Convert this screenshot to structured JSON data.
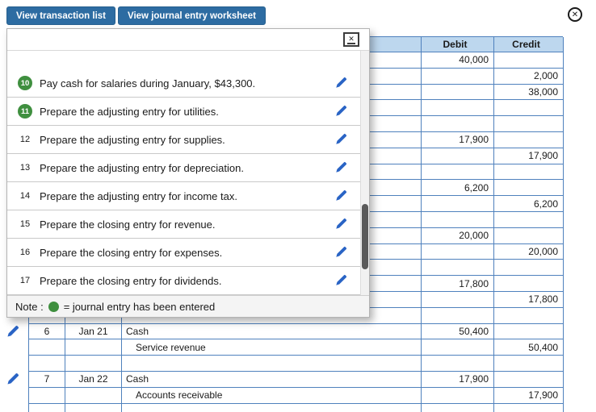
{
  "toolbar": {
    "view_transaction_list": "View transaction list",
    "view_journal_entry_worksheet": "View journal entry worksheet"
  },
  "icons": {
    "close_glyph": "✕"
  },
  "colors": {
    "button_blue": "#2d6ca2",
    "table_header_fill": "#bdd7ee",
    "grid_border_blue": "#4f81bd",
    "entered_green": "#3f8f3f",
    "pencil_blue": "#2a64c5"
  },
  "popup": {
    "items": [
      {
        "num": "10",
        "entered": true,
        "text": "Pay cash for salaries during January, $43,300."
      },
      {
        "num": "11",
        "entered": true,
        "text": "Prepare the adjusting entry for utilities."
      },
      {
        "num": "12",
        "entered": false,
        "text": "Prepare the adjusting entry for supplies."
      },
      {
        "num": "13",
        "entered": false,
        "text": "Prepare the adjusting entry for depreciation."
      },
      {
        "num": "14",
        "entered": false,
        "text": "Prepare the adjusting entry for income tax."
      },
      {
        "num": "15",
        "entered": false,
        "text": "Prepare the closing entry for revenue."
      },
      {
        "num": "16",
        "entered": false,
        "text": "Prepare the closing entry for expenses."
      },
      {
        "num": "17",
        "entered": false,
        "text": "Prepare the closing entry for dividends."
      }
    ],
    "note_prefix": "Note :",
    "note_text": "= journal entry has been entered"
  },
  "table": {
    "headers": {
      "debit": "Debit",
      "credit": "Credit"
    },
    "rows": [
      {
        "debit": "40,000"
      },
      {
        "credit": "2,000"
      },
      {
        "credit": "38,000"
      },
      {},
      {},
      {
        "debit": "17,900"
      },
      {
        "credit": "17,900"
      },
      {},
      {
        "debit": "6,200"
      },
      {
        "credit": "6,200"
      },
      {},
      {
        "debit": "20,000"
      },
      {
        "credit": "20,000"
      },
      {},
      {
        "debit": "17,800"
      },
      {
        "credit": "17,800"
      },
      {},
      {
        "pencil": true,
        "no": "6",
        "date": "Jan 21",
        "account": "Cash",
        "debit": "50,400"
      },
      {
        "indent": true,
        "account": "Service revenue",
        "credit": "50,400"
      },
      {},
      {
        "pencil": true,
        "no": "7",
        "date": "Jan 22",
        "account": "Cash",
        "debit": "17,900"
      },
      {
        "indent": true,
        "account": "Accounts receivable",
        "credit": "17,900"
      },
      {}
    ]
  }
}
